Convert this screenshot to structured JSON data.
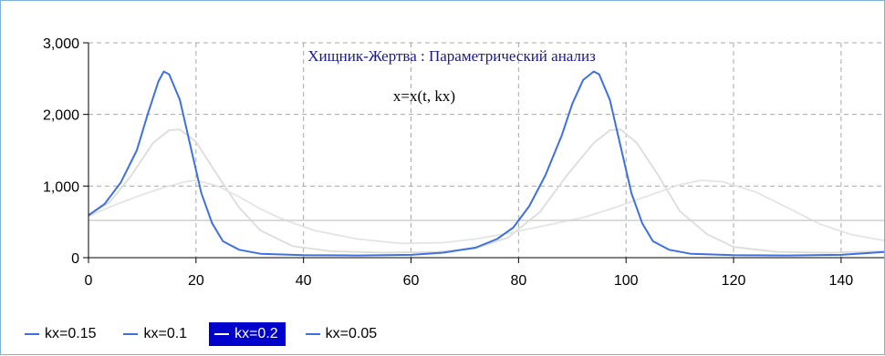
{
  "chart_data": {
    "type": "line",
    "title": "Хищник-Жертва : Параметрический анализ",
    "subtitle": "x=x(t, kx)",
    "xlabel": "",
    "ylabel": "",
    "xlim": [
      0,
      148
    ],
    "ylim": [
      0,
      3000
    ],
    "x_ticks": [
      0,
      20,
      40,
      60,
      80,
      100,
      120,
      140
    ],
    "y_ticks": [
      0,
      1000,
      2000,
      3000
    ],
    "x_tick_labels": [
      "0",
      "20",
      "40",
      "60",
      "80",
      "100",
      "120",
      "140"
    ],
    "y_tick_labels": [
      "0",
      "1,000",
      "2,000",
      "3,000"
    ],
    "grid": true,
    "legend_position": "bottom",
    "series": [
      {
        "name": "kx=0.15",
        "color": "#dcdcdc",
        "points": [
          [
            0,
            600
          ],
          [
            4,
            780
          ],
          [
            8,
            1150
          ],
          [
            12,
            1600
          ],
          [
            15,
            1780
          ],
          [
            17,
            1790
          ],
          [
            20,
            1620
          ],
          [
            24,
            1150
          ],
          [
            28,
            700
          ],
          [
            32,
            380
          ],
          [
            38,
            160
          ],
          [
            45,
            90
          ],
          [
            55,
            70
          ],
          [
            65,
            80
          ],
          [
            72,
            130
          ],
          [
            78,
            280
          ],
          [
            84,
            640
          ],
          [
            89,
            1150
          ],
          [
            94,
            1600
          ],
          [
            97,
            1780
          ],
          [
            99,
            1790
          ],
          [
            102,
            1600
          ],
          [
            106,
            1150
          ],
          [
            110,
            650
          ],
          [
            115,
            330
          ],
          [
            120,
            150
          ],
          [
            128,
            80
          ],
          [
            138,
            70
          ],
          [
            148,
            90
          ]
        ]
      },
      {
        "name": "kx=0.1",
        "color": "#e4e4e4",
        "points": [
          [
            0,
            580
          ],
          [
            5,
            740
          ],
          [
            10,
            880
          ],
          [
            14,
            980
          ],
          [
            18,
            1060
          ],
          [
            20,
            1080
          ],
          [
            24,
            1000
          ],
          [
            28,
            850
          ],
          [
            32,
            680
          ],
          [
            36,
            540
          ],
          [
            42,
            380
          ],
          [
            50,
            260
          ],
          [
            58,
            200
          ],
          [
            66,
            210
          ],
          [
            72,
            260
          ],
          [
            78,
            340
          ],
          [
            85,
            450
          ],
          [
            92,
            560
          ],
          [
            98,
            700
          ],
          [
            104,
            860
          ],
          [
            110,
            1020
          ],
          [
            114,
            1080
          ],
          [
            118,
            1060
          ],
          [
            124,
            920
          ],
          [
            130,
            700
          ],
          [
            136,
            470
          ],
          [
            142,
            320
          ],
          [
            148,
            240
          ]
        ]
      },
      {
        "name": "kx=0.2",
        "color": "#d6d6d6",
        "points": [
          [
            0,
            520
          ],
          [
            148,
            520
          ]
        ]
      },
      {
        "name": "kx=0.05",
        "color": "#3e70e0",
        "points": [
          [
            0,
            590
          ],
          [
            3,
            750
          ],
          [
            6,
            1050
          ],
          [
            9,
            1500
          ],
          [
            11,
            2000
          ],
          [
            13,
            2460
          ],
          [
            14,
            2600
          ],
          [
            15,
            2560
          ],
          [
            17,
            2200
          ],
          [
            19,
            1550
          ],
          [
            21,
            900
          ],
          [
            23,
            480
          ],
          [
            25,
            230
          ],
          [
            28,
            110
          ],
          [
            32,
            55
          ],
          [
            40,
            35
          ],
          [
            50,
            30
          ],
          [
            60,
            40
          ],
          [
            66,
            70
          ],
          [
            72,
            140
          ],
          [
            76,
            260
          ],
          [
            79,
            420
          ],
          [
            82,
            720
          ],
          [
            85,
            1150
          ],
          [
            88,
            1700
          ],
          [
            90,
            2150
          ],
          [
            92,
            2480
          ],
          [
            94,
            2600
          ],
          [
            95,
            2560
          ],
          [
            97,
            2200
          ],
          [
            99,
            1550
          ],
          [
            101,
            900
          ],
          [
            103,
            480
          ],
          [
            105,
            230
          ],
          [
            108,
            110
          ],
          [
            112,
            55
          ],
          [
            120,
            35
          ],
          [
            130,
            30
          ],
          [
            140,
            40
          ],
          [
            148,
            80
          ]
        ]
      }
    ]
  },
  "legend": {
    "items": [
      {
        "label": "kx=0.15",
        "swatch_color": "#3e70e0"
      },
      {
        "label": "kx=0.1",
        "swatch_color": "#3e70e0"
      },
      {
        "label": "kx=0.2",
        "swatch_color": "#ffffff"
      },
      {
        "label": "kx=0.05",
        "swatch_color": "#3e70e0"
      }
    ]
  }
}
